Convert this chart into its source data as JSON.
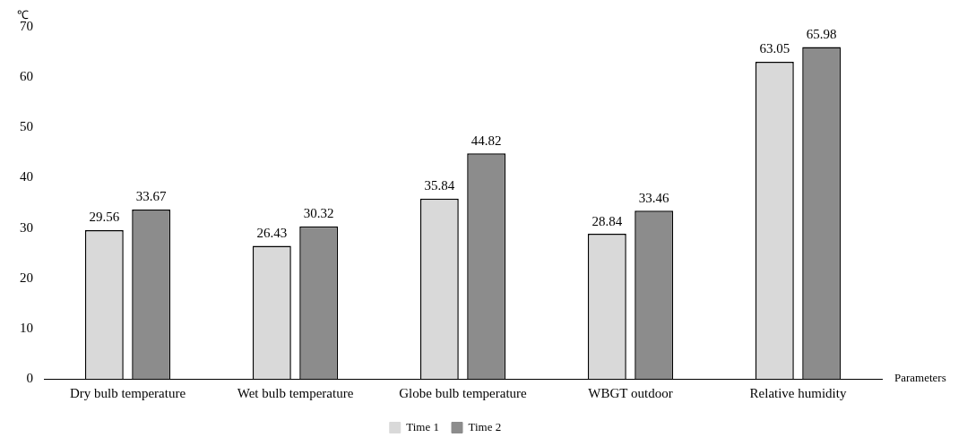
{
  "chart_data": {
    "type": "bar",
    "xlabel": "Parameters",
    "ylabel": "℃",
    "categories": [
      "Dry bulb temperature",
      "Wet bulb temperature",
      "Globe bulb temperature",
      "WBGT outdoor",
      "Relative humidity"
    ],
    "series": [
      {
        "name": "Time 1",
        "color": "#d9d9d9",
        "values": [
          29.56,
          26.43,
          35.84,
          28.84,
          63.05
        ]
      },
      {
        "name": "Time 2",
        "color": "#8c8c8c",
        "values": [
          33.67,
          30.32,
          44.82,
          33.46,
          65.98
        ]
      }
    ],
    "ylim": [
      0,
      70
    ],
    "yticks": [
      0,
      10,
      20,
      30,
      40,
      50,
      60,
      70
    ],
    "grid": false,
    "legend": "bottom",
    "data_labels": true
  }
}
